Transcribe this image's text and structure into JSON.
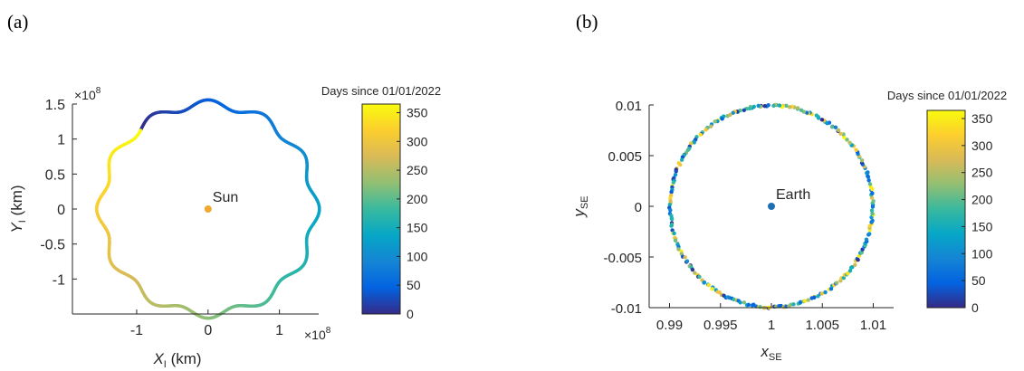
{
  "chart_data": [
    {
      "type": "scatter",
      "panel_label": "(a)",
      "x_label_main": "X",
      "x_label_sub": "I",
      "x_label_unit": " (km)",
      "y_label_main": "Y",
      "y_label_sub": "I",
      "y_label_unit": " (km)",
      "x_exponent": "×10",
      "x_exponent_power": "8",
      "y_exponent": "×10",
      "y_exponent_power": "8",
      "xlim": [
        -1.9,
        1.55
      ],
      "ylim": [
        -1.5,
        1.5
      ],
      "x_ticks": [
        -1,
        0,
        1
      ],
      "x_tick_labels": [
        "-1",
        "0",
        "1"
      ],
      "y_ticks": [
        -1,
        -0.5,
        0,
        0.5,
        1,
        1.5
      ],
      "y_tick_labels": [
        "-1",
        "-0.5",
        "0",
        "0.5",
        "1",
        "1.5"
      ],
      "center_point": {
        "x": 0,
        "y": 0,
        "label": "Sun",
        "color": "#f0a830"
      },
      "orbit": {
        "mean_radius": 1.5,
        "wobble_amplitude": 0.06,
        "wobble_cycles": 12,
        "start_angle_deg": 130
      },
      "colorbar": {
        "title": "Days since 01/01/2022",
        "range": [
          0,
          365
        ],
        "ticks": [
          0,
          50,
          100,
          150,
          200,
          250,
          300,
          350
        ],
        "tick_labels": [
          "0",
          "50",
          "100",
          "150",
          "200",
          "250",
          "300",
          "350"
        ],
        "colormap": "parula"
      },
      "grid": false
    },
    {
      "type": "scatter",
      "panel_label": "(b)",
      "x_label_main": "x",
      "x_label_sub": "SE",
      "y_label_main": "y",
      "y_label_sub": "SE",
      "xlim": [
        0.988,
        1.012
      ],
      "ylim": [
        -0.01,
        0.01
      ],
      "x_ticks": [
        0.99,
        0.995,
        1,
        1.005,
        1.01
      ],
      "x_tick_labels": [
        "0.99",
        "0.995",
        "1",
        "1.005",
        "1.01"
      ],
      "y_ticks": [
        -0.01,
        -0.005,
        0,
        0.005,
        0.01
      ],
      "y_tick_labels": [
        "-0.01",
        "-0.005",
        "0",
        "0.005",
        "0.01"
      ],
      "center_point": {
        "x": 1,
        "y": 0,
        "label": "Earth",
        "color": "#1f6fb4"
      },
      "ring": {
        "center_x": 1,
        "center_y": 0,
        "radius": 0.01,
        "points": 260
      },
      "colorbar": {
        "title": "Days since 01/01/2022",
        "range": [
          0,
          365
        ],
        "ticks": [
          0,
          50,
          100,
          150,
          200,
          250,
          300,
          350
        ],
        "tick_labels": [
          "0",
          "50",
          "100",
          "150",
          "200",
          "250",
          "300",
          "350"
        ],
        "colormap": "parula"
      },
      "grid": false
    }
  ]
}
